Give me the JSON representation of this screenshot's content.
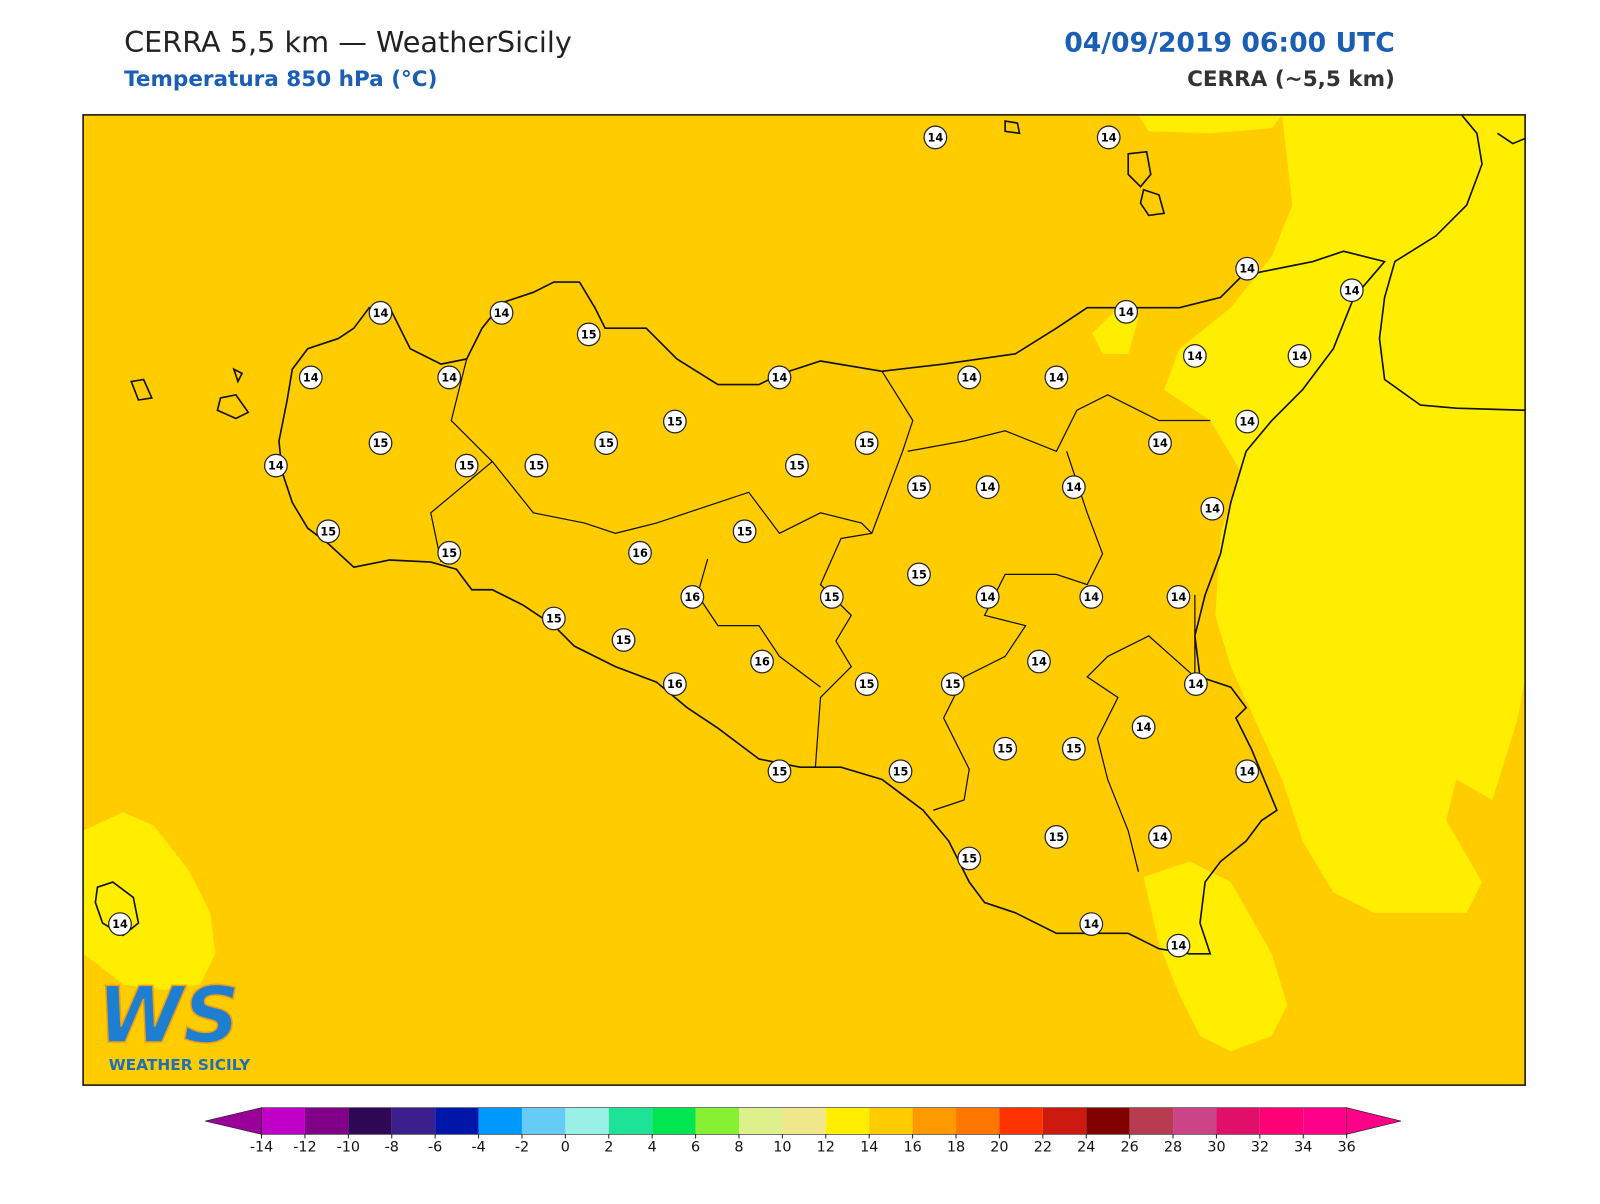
{
  "header": {
    "title": "CERRA 5,5 km — WeatherSicily",
    "subtitle": "Temperatura 850 hPa (°C)",
    "datetime": "04/09/2019 06:00 UTC",
    "model": "CERRA (~5,5 km)"
  },
  "map": {
    "background_color": "#ffcc00",
    "patch_color": "#ffee00",
    "stations": [
      14,
      14,
      14,
      14,
      15,
      14,
      14,
      14,
      14,
      14,
      14,
      14,
      14,
      14,
      14,
      15,
      14,
      15,
      15,
      15,
      14,
      14,
      15,
      15,
      15,
      15,
      14,
      14,
      14,
      15,
      15,
      15,
      16,
      15,
      16,
      15,
      14,
      14,
      14,
      15,
      15,
      14,
      16,
      16,
      15,
      15,
      14,
      14,
      15,
      15,
      14,
      15,
      15,
      15,
      14,
      15,
      14,
      14,
      14
    ]
  },
  "logo": {
    "mark": "WS",
    "name": "WEATHER SICILY"
  },
  "colorbar": {
    "ticks": [
      -14,
      -12,
      -10,
      -8,
      -6,
      -4,
      -2,
      0,
      2,
      4,
      6,
      8,
      10,
      12,
      14,
      16,
      18,
      20,
      22,
      24,
      26,
      28,
      30,
      32,
      34,
      36
    ],
    "colors": [
      "#c000c8",
      "#800088",
      "#2e0854",
      "#3b1f8c",
      "#0016a8",
      "#0099ff",
      "#66ccf5",
      "#99f0e6",
      "#1ee396",
      "#00e650",
      "#88f032",
      "#dcf08c",
      "#f0e68c",
      "#ffee00",
      "#ffcc00",
      "#ff9900",
      "#ff7700",
      "#ff3300",
      "#cc1a10",
      "#800000",
      "#b83c50",
      "#cc4488",
      "#e0106a",
      "#ff0077",
      "#ff0088"
    ],
    "under": "#9a009a",
    "over": "#ff0088"
  }
}
